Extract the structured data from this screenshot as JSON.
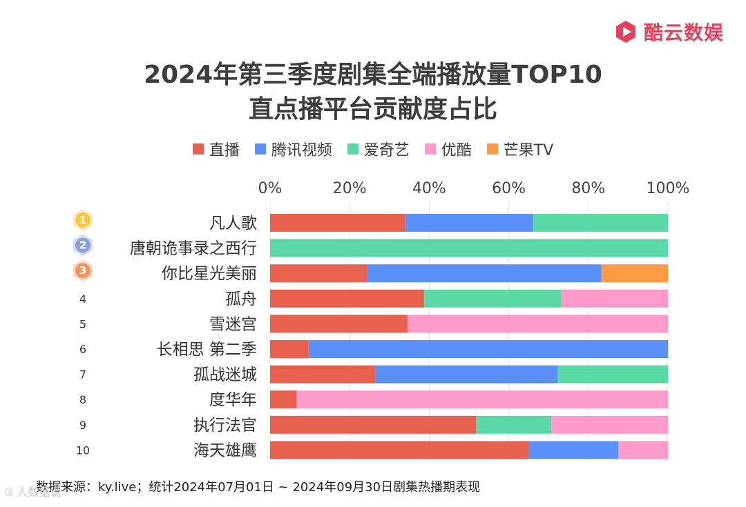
{
  "brand": {
    "name": "酷云数娱",
    "logo_icon": "play-logo-icon",
    "color": "#e7405a"
  },
  "title_line1": "2024年第三季度剧集全端播放量TOP10",
  "title_line2": "直点播平台贡献度占比",
  "footer": {
    "source": "数据来源：ky.live；统计2024年07月01日 ~  2024年09月30日剧集热播期表现"
  },
  "watermark": "🄯 人数据说",
  "chart_data": {
    "type": "bar",
    "orientation": "horizontal",
    "stacked": true,
    "percent": true,
    "title": "2024年第三季度剧集全端播放量TOP10 直点播平台贡献度占比",
    "xlabel": "",
    "ylabel": "",
    "xlim": [
      0,
      100
    ],
    "xticks": [
      "0%",
      "20%",
      "40%",
      "60%",
      "80%",
      "100%"
    ],
    "legend_position": "top-center",
    "ranks": [
      "1",
      "2",
      "3",
      "4",
      "5",
      "6",
      "7",
      "8",
      "9",
      "10"
    ],
    "rank_badge_colors": [
      "#f7c842",
      "#8e9ed8",
      "#f2945c"
    ],
    "categories": [
      "凡人歌",
      "唐朝诡事录之西行",
      "你比星光美丽",
      "孤舟",
      "雪迷宫",
      "长相思 第二季",
      "孤战迷城",
      "度华年",
      "执行法官",
      "海天雄鹰"
    ],
    "series": [
      {
        "name": "直播",
        "color": "#e8614f",
        "values": [
          34,
          0,
          24.3,
          38.7,
          34.6,
          9.7,
          26.4,
          6.7,
          51.8,
          65.1
        ]
      },
      {
        "name": "腾讯视频",
        "color": "#5b8ff9",
        "values": [
          32.1,
          0,
          59.0,
          0,
          0,
          90.3,
          45.9,
          0,
          0,
          22.4
        ]
      },
      {
        "name": "爱奇艺",
        "color": "#5ad8a6",
        "values": [
          33.9,
          100,
          0,
          34.5,
          0,
          0,
          27.7,
          0,
          18.9,
          0
        ]
      },
      {
        "name": "优酷",
        "color": "#ff9ac9",
        "values": [
          0,
          0,
          0,
          26.8,
          65.4,
          0,
          0,
          93.3,
          29.3,
          12.5
        ]
      },
      {
        "name": "芒果TV",
        "color": "#ff9a45",
        "values": [
          0,
          0,
          16.7,
          0,
          0,
          0,
          0,
          0,
          0,
          0
        ]
      }
    ]
  }
}
